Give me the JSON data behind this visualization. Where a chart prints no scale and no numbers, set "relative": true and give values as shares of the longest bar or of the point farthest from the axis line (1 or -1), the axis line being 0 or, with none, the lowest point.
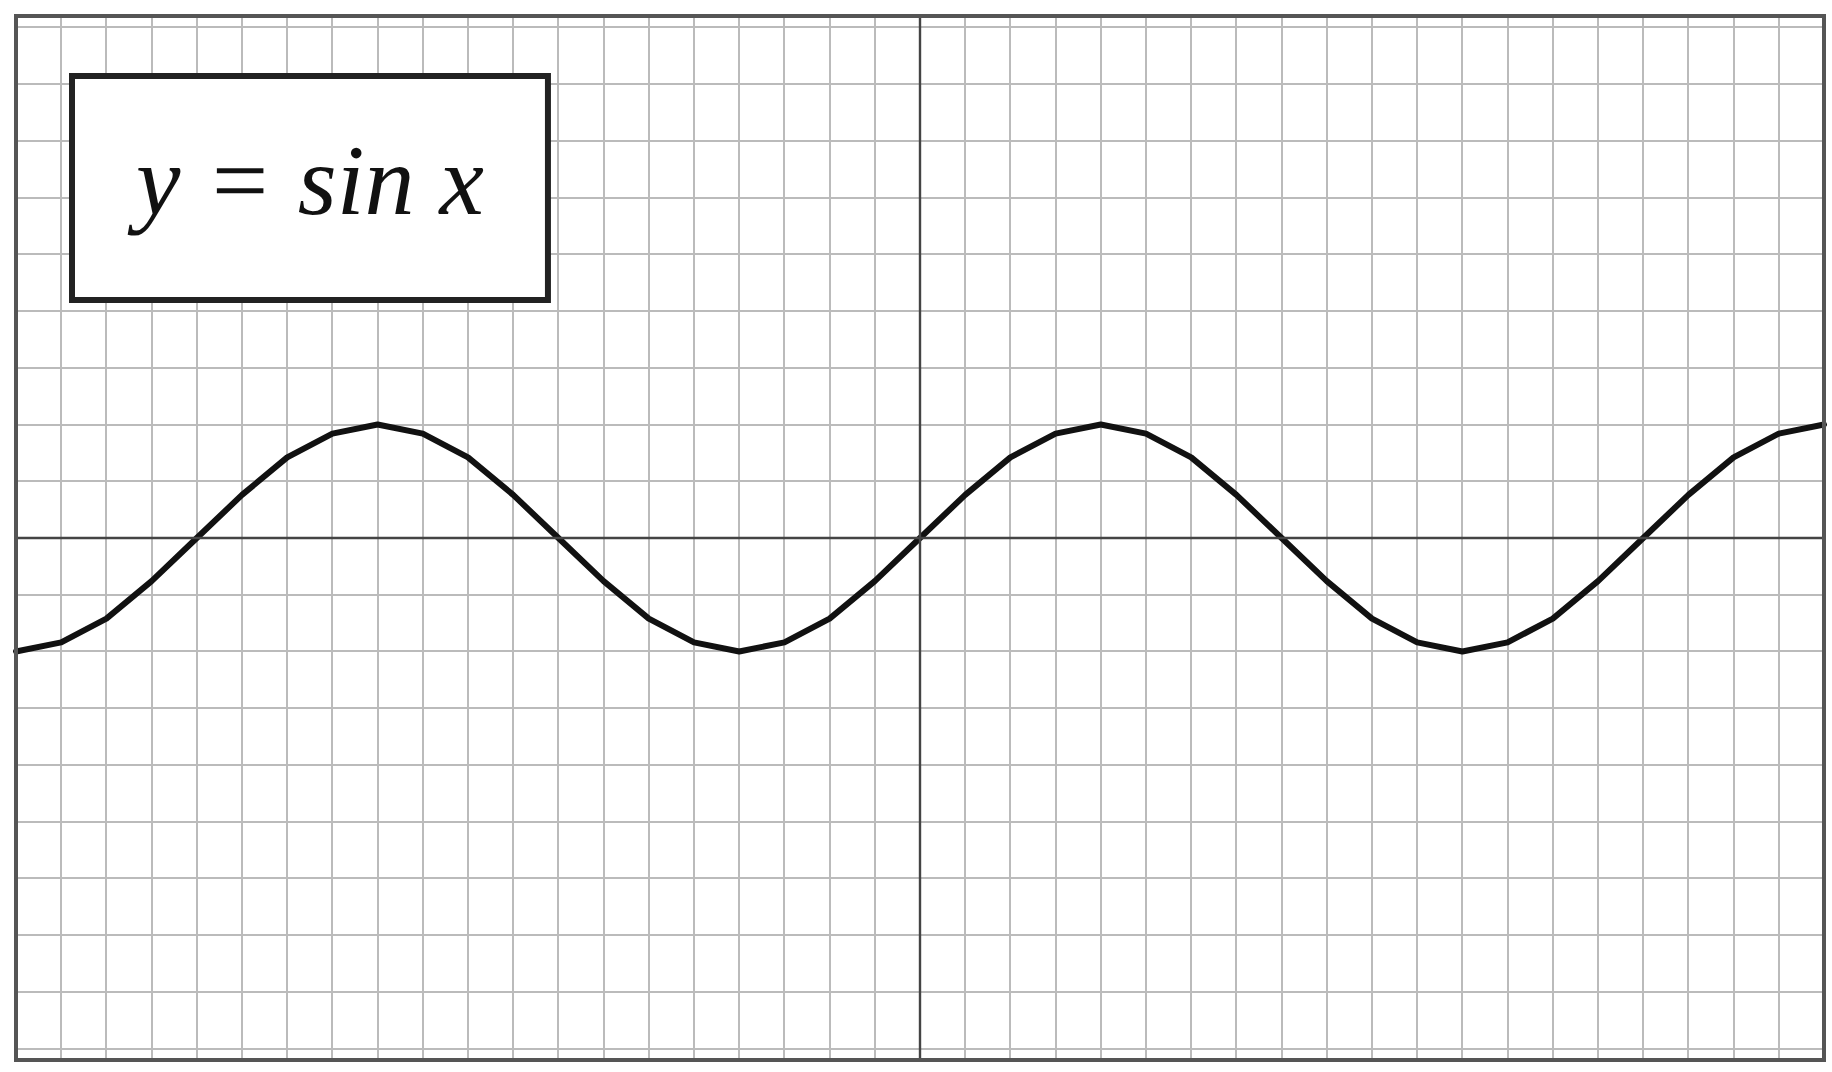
{
  "chart_data": {
    "type": "line",
    "relative": true,
    "tick_labels": false,
    "grid": true,
    "legend": false,
    "marker": "none",
    "line_style": "solid",
    "annotations": [
      "y = sin x"
    ],
    "categories": [
      null,
      null,
      null,
      null,
      null,
      null,
      null,
      null,
      null,
      null,
      null,
      null,
      null,
      null,
      null,
      null,
      null,
      null,
      null,
      null,
      null,
      null,
      null,
      null,
      null,
      null,
      null,
      null,
      null,
      null,
      null,
      null,
      null,
      null,
      null,
      null,
      null,
      null,
      null,
      null,
      null
    ],
    "series": [
      {
        "color": "#111111",
        "values": [
          -1,
          -0.92,
          -0.71,
          -0.38,
          0,
          0.38,
          0.71,
          0.92,
          1,
          0.92,
          0.71,
          0.38,
          0,
          -0.38,
          -0.71,
          -0.92,
          -1,
          -0.92,
          -0.71,
          -0.38,
          0,
          0.38,
          0.71,
          0.92,
          1,
          0.92,
          0.71,
          0.38,
          0,
          -0.38,
          -0.71,
          -0.92,
          -1,
          -0.92,
          -0.71,
          -0.38,
          0,
          0.38,
          0.71,
          0.92,
          1
        ]
      }
    ]
  }
}
